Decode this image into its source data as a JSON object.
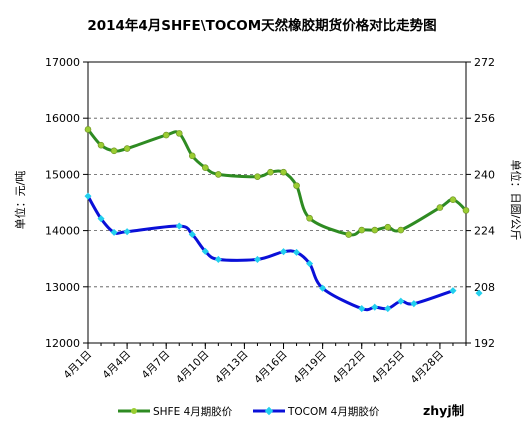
{
  "chart_data": {
    "type": "line",
    "title": "2014年4月SHFE\\TOCOM天然橡胶期货价格对比走势图",
    "ylabel_left": "单位：元/吨",
    "ylabel_right": "单位：日圆/公斤",
    "ylim_left": [
      12000,
      17000
    ],
    "yticks_left": [
      12000,
      13000,
      14000,
      15000,
      16000,
      17000
    ],
    "ylim_right": [
      192,
      272
    ],
    "yticks_right": [
      192,
      208,
      224,
      240,
      256,
      272
    ],
    "xlim": [
      1,
      30
    ],
    "x_ticks": [
      {
        "x": 1,
        "label": "4月1日"
      },
      {
        "x": 4,
        "label": "4月4日"
      },
      {
        "x": 7,
        "label": "4月7日"
      },
      {
        "x": 10,
        "label": "4月10日"
      },
      {
        "x": 13,
        "label": "4月13日"
      },
      {
        "x": 16,
        "label": "4月16日"
      },
      {
        "x": 19,
        "label": "4月19日"
      },
      {
        "x": 22,
        "label": "4月22日"
      },
      {
        "x": 25,
        "label": "4月25日"
      },
      {
        "x": 28,
        "label": "4月28日"
      }
    ],
    "grid": "horizontal dashed",
    "legend_placement": "bottom",
    "series": [
      {
        "name": "SHFE 4月期胶价",
        "axis": "left",
        "color": "#2e8b22",
        "marker_color": "#9acd32",
        "points": [
          [
            1,
            15800
          ],
          [
            2,
            15520
          ],
          [
            3,
            15420
          ],
          [
            4,
            15460
          ],
          [
            7,
            15700
          ],
          [
            8,
            15730
          ],
          [
            9,
            15330
          ],
          [
            10,
            15120
          ],
          [
            11,
            15000
          ],
          [
            14,
            14960
          ],
          [
            15,
            15040
          ],
          [
            16,
            15040
          ],
          [
            17,
            14800
          ],
          [
            18,
            14220
          ],
          [
            21,
            13930
          ],
          [
            22,
            14010
          ],
          [
            23,
            14010
          ],
          [
            24,
            14060
          ],
          [
            25,
            14010
          ],
          [
            28,
            14410
          ],
          [
            29,
            14550
          ],
          [
            30,
            14360
          ]
        ]
      },
      {
        "name": "TOCOM 4月期胶价",
        "axis": "right",
        "color": "#0a10d8",
        "marker_color": "#22d0ee",
        "points": [
          [
            1,
            233.8
          ],
          [
            2,
            227.4
          ],
          [
            3,
            223.5
          ],
          [
            4,
            223.7
          ],
          [
            8,
            225.3
          ],
          [
            9,
            222.9
          ],
          [
            10,
            218.1
          ],
          [
            11,
            215.8
          ],
          [
            14,
            215.8
          ],
          [
            16,
            218.0
          ],
          [
            17,
            217.8
          ],
          [
            18,
            214.6
          ],
          [
            19,
            207.6
          ],
          [
            22,
            201.8
          ],
          [
            23,
            202.2
          ],
          [
            24,
            201.8
          ],
          [
            25,
            203.9
          ],
          [
            26,
            203.2
          ],
          [
            29,
            206.9
          ]
        ],
        "extra_points": [
          [
            31,
            206.2
          ]
        ]
      }
    ],
    "annotation": "zhyj制"
  }
}
